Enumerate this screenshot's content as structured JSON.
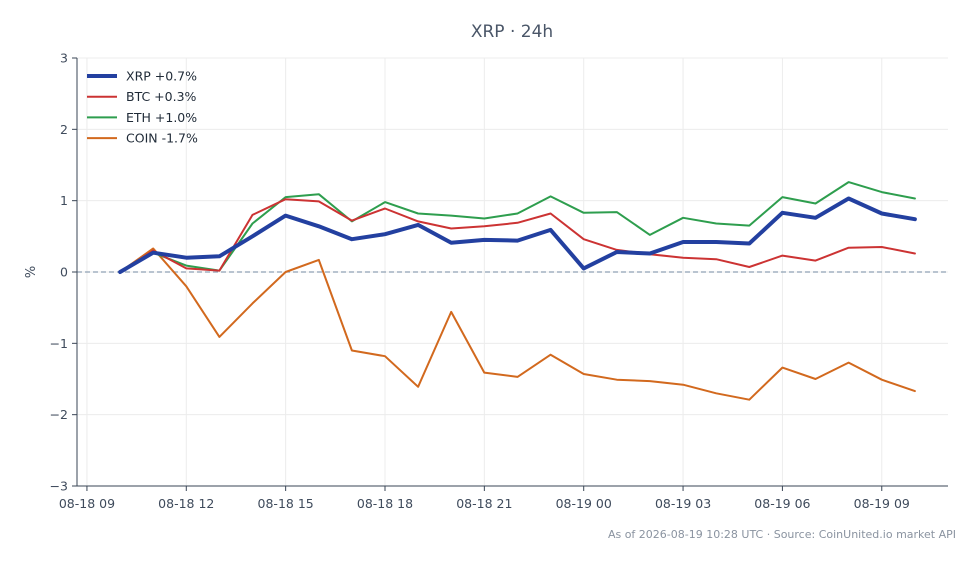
{
  "chart_data": {
    "type": "line",
    "title": "XRP · 24h",
    "xlabel": "",
    "ylabel": "%",
    "ylim": [
      -3,
      3
    ],
    "yticks": [
      3,
      2,
      1,
      0,
      -1,
      -2,
      -3
    ],
    "ytick_labels": [
      "3",
      "2",
      "1",
      "0",
      "−1",
      "−2",
      "−3"
    ],
    "xlim": [
      -0.3,
      26
    ],
    "xticks": [
      {
        "pos": 0,
        "label": "08-18 09"
      },
      {
        "pos": 3,
        "label": "08-18 12"
      },
      {
        "pos": 6,
        "label": "08-18 15"
      },
      {
        "pos": 9,
        "label": "08-18 18"
      },
      {
        "pos": 12,
        "label": "08-18 21"
      },
      {
        "pos": 15,
        "label": "08-19 00"
      },
      {
        "pos": 18,
        "label": "08-19 03"
      },
      {
        "pos": 21,
        "label": "08-19 06"
      },
      {
        "pos": 24,
        "label": "08-19 09"
      }
    ],
    "x": [
      1,
      2,
      3,
      4,
      5,
      6,
      7,
      8,
      9,
      10,
      11,
      12,
      13,
      14,
      15,
      16,
      17,
      18,
      19,
      20,
      21,
      22,
      23,
      24,
      25
    ],
    "grid": true,
    "legend_position": "top-left",
    "zero_line": true,
    "series": [
      {
        "name": "XRP +0.7%",
        "color": "#2340a0",
        "width": 4,
        "values": [
          0.0,
          0.27,
          0.2,
          0.22,
          0.5,
          0.79,
          0.64,
          0.46,
          0.53,
          0.66,
          0.41,
          0.45,
          0.44,
          0.59,
          0.05,
          0.28,
          0.26,
          0.42,
          0.42,
          0.4,
          0.83,
          0.76,
          1.03,
          0.82,
          0.74
        ]
      },
      {
        "name": "BTC +0.3%",
        "color": "#cc3333",
        "width": 2,
        "values": [
          0.0,
          0.3,
          0.05,
          0.02,
          0.8,
          1.02,
          0.99,
          0.72,
          0.89,
          0.71,
          0.61,
          0.64,
          0.69,
          0.82,
          0.46,
          0.31,
          0.25,
          0.2,
          0.18,
          0.07,
          0.23,
          0.16,
          0.34,
          0.35,
          0.26
        ]
      },
      {
        "name": "ETH +1.0%",
        "color": "#2e9e4e",
        "width": 2,
        "values": [
          0.0,
          0.27,
          0.09,
          0.02,
          0.68,
          1.05,
          1.09,
          0.71,
          0.98,
          0.82,
          0.79,
          0.75,
          0.82,
          1.06,
          0.83,
          0.84,
          0.52,
          0.76,
          0.68,
          0.65,
          1.05,
          0.96,
          1.26,
          1.12,
          1.03
        ]
      },
      {
        "name": "COIN -1.7%",
        "color": "#d2691e",
        "width": 2,
        "values": [
          0.0,
          0.33,
          -0.2,
          -0.91,
          -0.44,
          0.0,
          0.17,
          -1.1,
          -1.18,
          -1.61,
          -0.56,
          -1.41,
          -1.47,
          -1.16,
          -1.43,
          -1.51,
          -1.53,
          -1.58,
          -1.7,
          -1.79,
          -1.34,
          -1.5,
          -1.27,
          -1.51,
          -1.67
        ]
      }
    ]
  },
  "footer": "As of 2026-08-19 10:28 UTC · Source: CoinUnited.io market API"
}
